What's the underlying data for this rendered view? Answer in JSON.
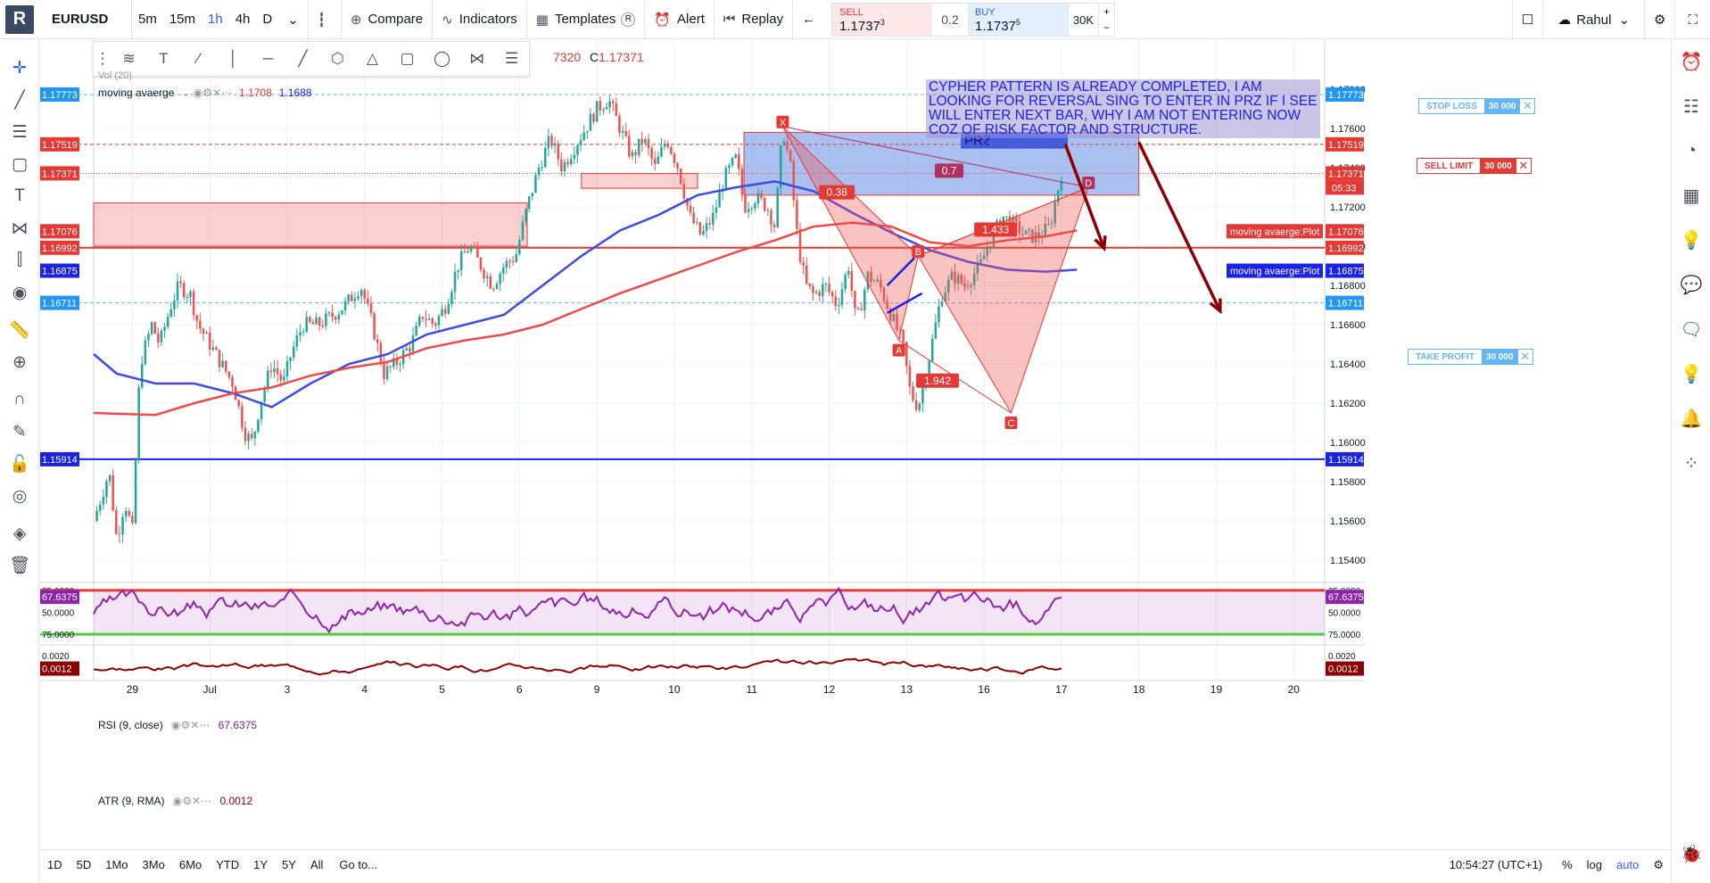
{
  "toolbar": {
    "logo": "R",
    "symbol": "EURUSD",
    "intervals": [
      "5m",
      "15m",
      "1h",
      "4h",
      "D"
    ],
    "active_interval": "1h",
    "compare": "Compare",
    "indicators": "Indicators",
    "templates": "Templates",
    "templates_badge": "R",
    "alert": "Alert",
    "replay": "Replay",
    "sell_label": "SELL",
    "sell_price": "1.1737",
    "sell_sup": "3",
    "spread": "0.2",
    "buy_label": "BUY",
    "buy_price": "1.1737",
    "buy_sup": "5",
    "qty": "30K",
    "user": "Rahul"
  },
  "legend": {
    "ohlc_partial": "7320",
    "close_label": "C",
    "close_value": "1.17371",
    "vol": "Vol (20)",
    "ma_name": "moving avaerge",
    "ma_val1": "1.1708",
    "ma_val2": "1.1688",
    "rsi_name": "RSI (9, close)",
    "rsi_value": "67.6375",
    "atr_name": "ATR (9, RMA)",
    "atr_value": "0.0012"
  },
  "note_text": "CYPHER PATTERN IS ALREADY COMPLETED, I AM LOOKING FOR REVERSAL SING TO ENTER IN PRZ IF I SEE WILL ENTER NEXT BAR, WHY I AM NOT ENTERING NOW COZ OF RISK FACTOR AND STRUCTURE.",
  "orders": {
    "stop_loss": {
      "label": "STOP LOSS",
      "qty": "30 000",
      "price": "1.17773",
      "color": "#64b5f6"
    },
    "sell_limit": {
      "label": "SELL LIMIT",
      "qty": "30 000",
      "price": "1.17519",
      "color": "#e53935"
    },
    "take_profit": {
      "label": "TAKE PROFIT",
      "qty": "30 000",
      "price": "1.16711",
      "color": "#64b5f6"
    }
  },
  "bottom": {
    "ranges": [
      "1D",
      "5D",
      "1Mo",
      "3Mo",
      "6Mo",
      "YTD",
      "1Y",
      "5Y",
      "All"
    ],
    "goto": "Go to...",
    "clock": "10:54:27 (UTC+1)",
    "pct": "%",
    "log": "log",
    "auto": "auto"
  },
  "chart_data": {
    "type": "candlestick",
    "symbol": "EURUSD",
    "timeframe": "1h",
    "ylim": [
      1.153,
      1.1805
    ],
    "y_ticks": [
      1.154,
      1.156,
      1.158,
      1.16,
      1.162,
      1.164,
      1.166,
      1.168,
      1.17,
      1.172,
      1.174,
      1.176,
      1.178
    ],
    "x_ticks": [
      {
        "label": "29",
        "day": 1.2
      },
      {
        "label": "Jul",
        "day": 2.2
      },
      {
        "label": "3",
        "day": 3.2
      },
      {
        "label": "4",
        "day": 4.2
      },
      {
        "label": "5",
        "day": 5.2
      },
      {
        "label": "6",
        "day": 6.2
      },
      {
        "label": "9",
        "day": 7.2
      },
      {
        "label": "10",
        "day": 8.2
      },
      {
        "label": "11",
        "day": 9.2
      },
      {
        "label": "12",
        "day": 10.2
      },
      {
        "label": "13",
        "day": 11.2
      },
      {
        "label": "16",
        "day": 12.2
      },
      {
        "label": "17",
        "day": 13.2
      },
      {
        "label": "18",
        "day": 14.2
      },
      {
        "label": "19",
        "day": 15.2
      },
      {
        "label": "20",
        "day": 16.2
      }
    ],
    "xlim": [
      0.7,
      16.6
    ],
    "price_path": [
      [
        0.7,
        1.156
      ],
      [
        0.9,
        1.1585
      ],
      [
        1.0,
        1.155
      ],
      [
        1.1,
        1.157
      ],
      [
        1.2,
        1.1555
      ],
      [
        1.3,
        1.164
      ],
      [
        1.45,
        1.166
      ],
      [
        1.55,
        1.165
      ],
      [
        1.7,
        1.167
      ],
      [
        1.8,
        1.168
      ],
      [
        1.95,
        1.1675
      ],
      [
        2.05,
        1.166
      ],
      [
        2.2,
        1.165
      ],
      [
        2.35,
        1.164
      ],
      [
        2.5,
        1.163
      ],
      [
        2.65,
        1.1605
      ],
      [
        2.75,
        1.16
      ],
      [
        2.85,
        1.162
      ],
      [
        3.0,
        1.164
      ],
      [
        3.15,
        1.163
      ],
      [
        3.25,
        1.1645
      ],
      [
        3.4,
        1.166
      ],
      [
        3.6,
        1.166
      ],
      [
        3.8,
        1.1665
      ],
      [
        3.95,
        1.167
      ],
      [
        4.15,
        1.168
      ],
      [
        4.3,
        1.166
      ],
      [
        4.45,
        1.1635
      ],
      [
        4.6,
        1.164
      ],
      [
        4.8,
        1.165
      ],
      [
        4.95,
        1.1665
      ],
      [
        5.1,
        1.166
      ],
      [
        5.25,
        1.167
      ],
      [
        5.4,
        1.169
      ],
      [
        5.55,
        1.17
      ],
      [
        5.7,
        1.169
      ],
      [
        5.85,
        1.168
      ],
      [
        6.0,
        1.169
      ],
      [
        6.15,
        1.1695
      ],
      [
        6.3,
        1.172
      ],
      [
        6.45,
        1.174
      ],
      [
        6.6,
        1.1755
      ],
      [
        6.75,
        1.174
      ],
      [
        6.9,
        1.175
      ],
      [
        7.05,
        1.176
      ],
      [
        7.2,
        1.177
      ],
      [
        7.35,
        1.1775
      ],
      [
        7.5,
        1.176
      ],
      [
        7.65,
        1.1745
      ],
      [
        7.8,
        1.1755
      ],
      [
        7.95,
        1.174
      ],
      [
        8.1,
        1.1755
      ],
      [
        8.25,
        1.174
      ],
      [
        8.4,
        1.1715
      ],
      [
        8.55,
        1.1705
      ],
      [
        8.7,
        1.1715
      ],
      [
        8.85,
        1.1735
      ],
      [
        9.0,
        1.1745
      ],
      [
        9.1,
        1.172
      ],
      [
        9.25,
        1.1725
      ],
      [
        9.4,
        1.172
      ],
      [
        9.5,
        1.171
      ],
      [
        9.6,
        1.176
      ],
      [
        9.7,
        1.174
      ],
      [
        9.8,
        1.17
      ],
      [
        9.9,
        1.168
      ],
      [
        10.0,
        1.1675
      ],
      [
        10.15,
        1.168
      ],
      [
        10.3,
        1.167
      ],
      [
        10.45,
        1.169
      ],
      [
        10.55,
        1.166
      ],
      [
        10.7,
        1.1685
      ],
      [
        10.85,
        1.168
      ],
      [
        11.0,
        1.1665
      ],
      [
        11.15,
        1.165
      ],
      [
        11.25,
        1.1625
      ],
      [
        11.35,
        1.1618
      ],
      [
        11.5,
        1.1645
      ],
      [
        11.65,
        1.1675
      ],
      [
        11.8,
        1.1685
      ],
      [
        11.95,
        1.168
      ],
      [
        12.15,
        1.169
      ],
      [
        12.3,
        1.1705
      ],
      [
        12.45,
        1.1715
      ],
      [
        12.6,
        1.171
      ],
      [
        12.75,
        1.1705
      ],
      [
        12.9,
        1.1705
      ],
      [
        13.05,
        1.171
      ],
      [
        13.2,
        1.1737
      ]
    ],
    "series": [
      {
        "name": "moving avaerge",
        "color": "#3d4ce6",
        "values": [
          [
            0.7,
            1.1645
          ],
          [
            1.0,
            1.1635
          ],
          [
            1.5,
            1.163
          ],
          [
            2.0,
            1.163
          ],
          [
            2.5,
            1.1625
          ],
          [
            3.0,
            1.1618
          ],
          [
            3.5,
            1.163
          ],
          [
            4.0,
            1.164
          ],
          [
            4.5,
            1.1645
          ],
          [
            5.0,
            1.1655
          ],
          [
            5.5,
            1.166
          ],
          [
            6.0,
            1.1665
          ],
          [
            6.5,
            1.168
          ],
          [
            7.0,
            1.1695
          ],
          [
            7.5,
            1.1708
          ],
          [
            8.0,
            1.1716
          ],
          [
            8.5,
            1.1726
          ],
          [
            9.0,
            1.173
          ],
          [
            9.5,
            1.1733
          ],
          [
            10.0,
            1.1728
          ],
          [
            10.5,
            1.1717
          ],
          [
            11.0,
            1.1707
          ],
          [
            11.5,
            1.1698
          ],
          [
            12.0,
            1.1692
          ],
          [
            12.5,
            1.1688
          ],
          [
            13.0,
            1.1687
          ],
          [
            13.4,
            1.1688
          ]
        ]
      },
      {
        "name": "moving avaerge",
        "color": "#ef4a4a",
        "values": [
          [
            0.7,
            1.1615
          ],
          [
            1.5,
            1.1614
          ],
          [
            2.0,
            1.162
          ],
          [
            2.5,
            1.1625
          ],
          [
            3.0,
            1.1628
          ],
          [
            3.5,
            1.1634
          ],
          [
            4.0,
            1.1638
          ],
          [
            4.5,
            1.1641
          ],
          [
            5.0,
            1.1648
          ],
          [
            5.5,
            1.1652
          ],
          [
            6.0,
            1.1655
          ],
          [
            6.5,
            1.166
          ],
          [
            7.0,
            1.1668
          ],
          [
            7.5,
            1.1676
          ],
          [
            8.0,
            1.1683
          ],
          [
            8.5,
            1.169
          ],
          [
            9.0,
            1.1697
          ],
          [
            9.5,
            1.1703
          ],
          [
            10.0,
            1.171
          ],
          [
            10.5,
            1.1712
          ],
          [
            11.0,
            1.171
          ],
          [
            11.5,
            1.1702
          ],
          [
            12.0,
            1.17
          ],
          [
            12.5,
            1.1703
          ],
          [
            13.0,
            1.1705
          ],
          [
            13.4,
            1.1708
          ]
        ]
      }
    ],
    "horizontal_lines": [
      {
        "price": 1.17773,
        "color": "#64b5f6",
        "style": "dashed"
      },
      {
        "price": 1.17519,
        "color": "#e53935",
        "style": "dashed"
      },
      {
        "price": 1.17371,
        "color": "#e53935",
        "style": "dotted"
      },
      {
        "price": 1.16992,
        "color": "#e53935",
        "style": "solid"
      },
      {
        "price": 1.16711,
        "color": "#64b5f6",
        "style": "dashed"
      },
      {
        "price": 1.15914,
        "color": "#1a22e6",
        "style": "solid"
      }
    ],
    "price_labels": [
      {
        "price": 1.17773,
        "text": "1.17773",
        "color": "#2196f3"
      },
      {
        "price": 1.17519,
        "text": "1.17519",
        "color": "#e53935"
      },
      {
        "price": 1.17371,
        "text": "1.17371",
        "color": "#e53935",
        "sub": "05:33"
      },
      {
        "price": 1.17076,
        "text": "1.17076",
        "color": "#e53935",
        "name": "moving avaerge:Plot"
      },
      {
        "price": 1.16992,
        "text": "1.16992",
        "color": "#e53935"
      },
      {
        "price": 1.16875,
        "text": "1.16875",
        "color": "#1a22e6",
        "name": "moving avaerge:Plot"
      },
      {
        "price": 1.16711,
        "text": "1.16711",
        "color": "#2196f3"
      },
      {
        "price": 1.15914,
        "text": "1.15914",
        "color": "#1a22e6"
      }
    ],
    "zones": [
      {
        "x0": 0.7,
        "x1": 6.3,
        "y0": 1.17,
        "y1": 1.1722,
        "type": "supply"
      },
      {
        "x0": 7.0,
        "x1": 8.5,
        "y0": 1.17295,
        "y1": 1.1737,
        "type": "supply"
      },
      {
        "x0": 9.1,
        "x1": 14.2,
        "y0": 1.1726,
        "y1": 1.1758,
        "type": "prz"
      }
    ],
    "prz_label": "PRZ",
    "cypher": {
      "points": [
        {
          "label": "X",
          "day": 9.6,
          "price": 1.1761
        },
        {
          "label": "A",
          "day": 11.1,
          "price": 1.1652
        },
        {
          "label": "B",
          "day": 11.35,
          "price": 1.1695
        },
        {
          "label": "C",
          "day": 12.55,
          "price": 1.1615
        },
        {
          "label": "D",
          "day": 13.55,
          "price": 1.173
        }
      ],
      "ratios": [
        {
          "text": "0.38",
          "day": 10.3,
          "price": 1.1727
        },
        {
          "text": "1.942",
          "day": 11.6,
          "price": 1.1631
        },
        {
          "text": "1.433",
          "day": 12.35,
          "price": 1.1708
        },
        {
          "text": "0.7",
          "day": 11.75,
          "price": 1.1738
        }
      ]
    },
    "rsi": {
      "name": "RSI (9, close)",
      "ylim": [
        15,
        80
      ],
      "ticks": [
        25,
        50,
        75
      ],
      "last": 67.6375
    },
    "atr": {
      "name": "ATR (9, RMA)",
      "ticks": [
        0.002
      ],
      "last": 0.0012
    },
    "rsi_tick_labels": [
      "75.0000",
      "50.0000",
      "25.0000"
    ],
    "atr_tick_labels": [
      "0.0020"
    ]
  }
}
